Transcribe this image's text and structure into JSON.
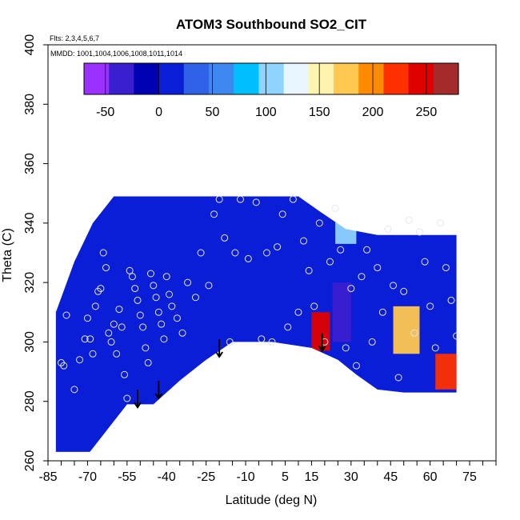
{
  "chart_data": {
    "type": "heatmap",
    "title": "ATOM3 Southbound SO2_CIT",
    "flights_note": "Flts: 2,3,4,5,6,7",
    "dates_note": "MMDD: 1001,1004,1006,1008,1011,1014",
    "xlabel": "Latitude (deg N)",
    "ylabel": "Theta (C)",
    "xlim": [
      -85,
      85
    ],
    "ylim": [
      260,
      400
    ],
    "x_ticks": [
      -85,
      -70,
      -55,
      -40,
      -25,
      -10,
      5,
      15,
      30,
      45,
      60,
      75
    ],
    "y_ticks": [
      260,
      280,
      300,
      320,
      340,
      360,
      380,
      400
    ],
    "colorbar": {
      "range": [
        -70,
        280
      ],
      "ticks": [
        -50,
        0,
        50,
        100,
        150,
        200,
        250
      ],
      "colors": [
        "#9B30FF",
        "#3A1FD0",
        "#0000B4",
        "#0A1ED8",
        "#2F62E6",
        "#3C88F0",
        "#00BFFF",
        "#8FD3FF",
        "#EAF6FF",
        "#FFF3B0",
        "#FFC850",
        "#FF8C00",
        "#FF3000",
        "#E00000",
        "#A52A2A"
      ]
    },
    "field_regions": [
      {
        "lat": [
          -82,
          70
        ],
        "theta": [
          263,
          349
        ],
        "value": 22
      },
      {
        "lat": [
          15,
          22
        ],
        "theta": [
          297,
          310
        ],
        "value": 255
      },
      {
        "lat": [
          23,
          30
        ],
        "theta": [
          300,
          320
        ],
        "value": -45
      },
      {
        "lat": [
          46,
          56
        ],
        "theta": [
          296,
          312
        ],
        "value": 185
      },
      {
        "lat": [
          24,
          32
        ],
        "theta": [
          333,
          343
        ],
        "value": 110
      },
      {
        "lat": [
          62,
          70
        ],
        "theta": [
          284,
          296
        ],
        "value": 230
      }
    ],
    "observations": [
      {
        "lat": -78,
        "theta": 309
      },
      {
        "lat": -80,
        "theta": 293
      },
      {
        "lat": -79,
        "theta": 292
      },
      {
        "lat": -75,
        "theta": 284
      },
      {
        "lat": -73,
        "theta": 294
      },
      {
        "lat": -71,
        "theta": 301
      },
      {
        "lat": -70,
        "theta": 308
      },
      {
        "lat": -69,
        "theta": 301
      },
      {
        "lat": -68,
        "theta": 296
      },
      {
        "lat": -67,
        "theta": 312
      },
      {
        "lat": -66,
        "theta": 317
      },
      {
        "lat": -65,
        "theta": 318
      },
      {
        "lat": -64,
        "theta": 330
      },
      {
        "lat": -63,
        "theta": 325
      },
      {
        "lat": -62,
        "theta": 303
      },
      {
        "lat": -61,
        "theta": 300
      },
      {
        "lat": -60,
        "theta": 306
      },
      {
        "lat": -59,
        "theta": 296
      },
      {
        "lat": -58,
        "theta": 311
      },
      {
        "lat": -57,
        "theta": 305
      },
      {
        "lat": -56,
        "theta": 289
      },
      {
        "lat": -55,
        "theta": 281
      },
      {
        "lat": -54,
        "theta": 324
      },
      {
        "lat": -53,
        "theta": 322
      },
      {
        "lat": -52,
        "theta": 318
      },
      {
        "lat": -51,
        "theta": 314
      },
      {
        "lat": -50,
        "theta": 309
      },
      {
        "lat": -49,
        "theta": 305
      },
      {
        "lat": -48,
        "theta": 298
      },
      {
        "lat": -47,
        "theta": 293
      },
      {
        "lat": -46,
        "theta": 323
      },
      {
        "lat": -45,
        "theta": 319
      },
      {
        "lat": -44,
        "theta": 315
      },
      {
        "lat": -43,
        "theta": 310
      },
      {
        "lat": -42,
        "theta": 306
      },
      {
        "lat": -41,
        "theta": 301
      },
      {
        "lat": -40,
        "theta": 322
      },
      {
        "lat": -39,
        "theta": 316
      },
      {
        "lat": -38,
        "theta": 312
      },
      {
        "lat": -36,
        "theta": 308
      },
      {
        "lat": -34,
        "theta": 303
      },
      {
        "lat": -32,
        "theta": 320
      },
      {
        "lat": -29,
        "theta": 315
      },
      {
        "lat": -27,
        "theta": 330
      },
      {
        "lat": -24,
        "theta": 319
      },
      {
        "lat": -22,
        "theta": 343
      },
      {
        "lat": -20,
        "theta": 348
      },
      {
        "lat": -18,
        "theta": 335
      },
      {
        "lat": -16,
        "theta": 300
      },
      {
        "lat": -14,
        "theta": 330
      },
      {
        "lat": -12,
        "theta": 348
      },
      {
        "lat": -9,
        "theta": 328
      },
      {
        "lat": -6,
        "theta": 347
      },
      {
        "lat": -4,
        "theta": 301
      },
      {
        "lat": -2,
        "theta": 330
      },
      {
        "lat": 0,
        "theta": 300
      },
      {
        "lat": 2,
        "theta": 332
      },
      {
        "lat": 4,
        "theta": 343
      },
      {
        "lat": 6,
        "theta": 305
      },
      {
        "lat": 8,
        "theta": 348
      },
      {
        "lat": 10,
        "theta": 310
      },
      {
        "lat": 12,
        "theta": 334
      },
      {
        "lat": 14,
        "theta": 324
      },
      {
        "lat": 16,
        "theta": 312
      },
      {
        "lat": 18,
        "theta": 340
      },
      {
        "lat": 20,
        "theta": 300
      },
      {
        "lat": 22,
        "theta": 327
      },
      {
        "lat": 24,
        "theta": 345
      },
      {
        "lat": 26,
        "theta": 331
      },
      {
        "lat": 28,
        "theta": 298
      },
      {
        "lat": 30,
        "theta": 318
      },
      {
        "lat": 32,
        "theta": 292
      },
      {
        "lat": 34,
        "theta": 322
      },
      {
        "lat": 36,
        "theta": 331
      },
      {
        "lat": 38,
        "theta": 300
      },
      {
        "lat": 40,
        "theta": 325
      },
      {
        "lat": 42,
        "theta": 310
      },
      {
        "lat": 44,
        "theta": 338
      },
      {
        "lat": 46,
        "theta": 319
      },
      {
        "lat": 48,
        "theta": 288
      },
      {
        "lat": 50,
        "theta": 317
      },
      {
        "lat": 52,
        "theta": 341
      },
      {
        "lat": 54,
        "theta": 303
      },
      {
        "lat": 56,
        "theta": 337
      },
      {
        "lat": 58,
        "theta": 327
      },
      {
        "lat": 60,
        "theta": 312
      },
      {
        "lat": 62,
        "theta": 298
      },
      {
        "lat": 64,
        "theta": 340
      },
      {
        "lat": 66,
        "theta": 325
      },
      {
        "lat": 68,
        "theta": 314
      },
      {
        "lat": 70,
        "theta": 302
      }
    ],
    "tropopause_markers": [
      {
        "lat": -51,
        "theta": 278
      },
      {
        "lat": -43,
        "theta": 281
      },
      {
        "lat": -20,
        "theta": 295
      },
      {
        "lat": 19,
        "theta": 297
      }
    ]
  }
}
